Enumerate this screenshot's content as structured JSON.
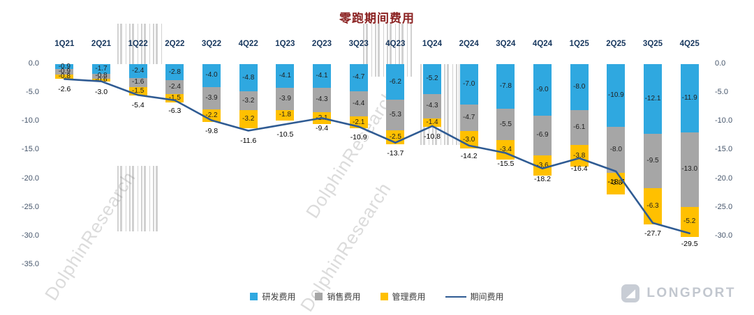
{
  "title": "零跑期间费用",
  "axes": {
    "left_ticks": [
      "0.0",
      "-5.0",
      "-10.0",
      "-15.0",
      "-20.0",
      "-25.0",
      "-30.0",
      "-35.0"
    ],
    "right_ticks": [
      "0.0",
      "-5.0",
      "-10.0",
      "-15.0",
      "-20.0",
      "-25.0",
      "-30.0"
    ],
    "left_min": -35,
    "right_min": -30
  },
  "legend": [
    {
      "label": "研发费用"
    },
    {
      "label": "销售费用"
    },
    {
      "label": "管理费用"
    },
    {
      "label": "期间费用"
    }
  ],
  "watermark": {
    "text": "DolphinResearch",
    "brand": "LONGPORT"
  },
  "chart_data": {
    "type": "bar",
    "subtype": "stacked-bar-with-line",
    "title": "零跑期间费用",
    "categories": [
      "1Q21",
      "2Q21",
      "1Q22",
      "2Q22",
      "3Q22",
      "4Q22",
      "1Q23",
      "2Q23",
      "3Q23",
      "4Q23",
      "1Q24",
      "2Q24",
      "3Q24",
      "4Q24",
      "1Q25",
      "2Q25",
      "3Q25",
      "4Q25"
    ],
    "series": [
      {
        "name": "研发费用",
        "color": "#2fa8e0",
        "values": [
          -0.9,
          -1.7,
          -2.4,
          -2.8,
          -4.0,
          -4.8,
          -4.1,
          -4.1,
          -4.7,
          -6.2,
          -5.2,
          -7.0,
          -7.8,
          -9.0,
          -8.0,
          -10.9,
          -12.1,
          -11.9
        ]
      },
      {
        "name": "销售费用",
        "color": "#a6a6a6",
        "values": [
          -0.9,
          -0.8,
          -1.6,
          -2.4,
          -3.9,
          -3.2,
          -3.9,
          -4.3,
          -4.4,
          -5.3,
          -4.3,
          -4.7,
          -5.5,
          -6.9,
          -6.1,
          -8.0,
          -9.5,
          -13.0
        ]
      },
      {
        "name": "管理费用",
        "color": "#ffc000",
        "values": [
          -0.8,
          -0.6,
          -1.5,
          -1.5,
          -2.2,
          -3.2,
          -1.8,
          -2.1,
          -2.1,
          -2.5,
          -1.4,
          -3.0,
          -3.4,
          -3.6,
          -3.8,
          -3.8,
          -6.3,
          -5.2
        ]
      }
    ],
    "line_series": {
      "name": "期间费用",
      "color": "#2f5b93",
      "values": [
        -2.6,
        -3.0,
        -5.4,
        -6.3,
        -9.8,
        -11.6,
        -10.5,
        -9.4,
        -10.9,
        -13.7,
        -10.8,
        -14.2,
        -15.5,
        -18.2,
        -16.4,
        -18.7,
        -27.7,
        -29.5
      ]
    },
    "ylim_left": [
      -35,
      0
    ],
    "ylim_right": [
      -30,
      0
    ],
    "grid": false,
    "legend_position": "bottom"
  }
}
